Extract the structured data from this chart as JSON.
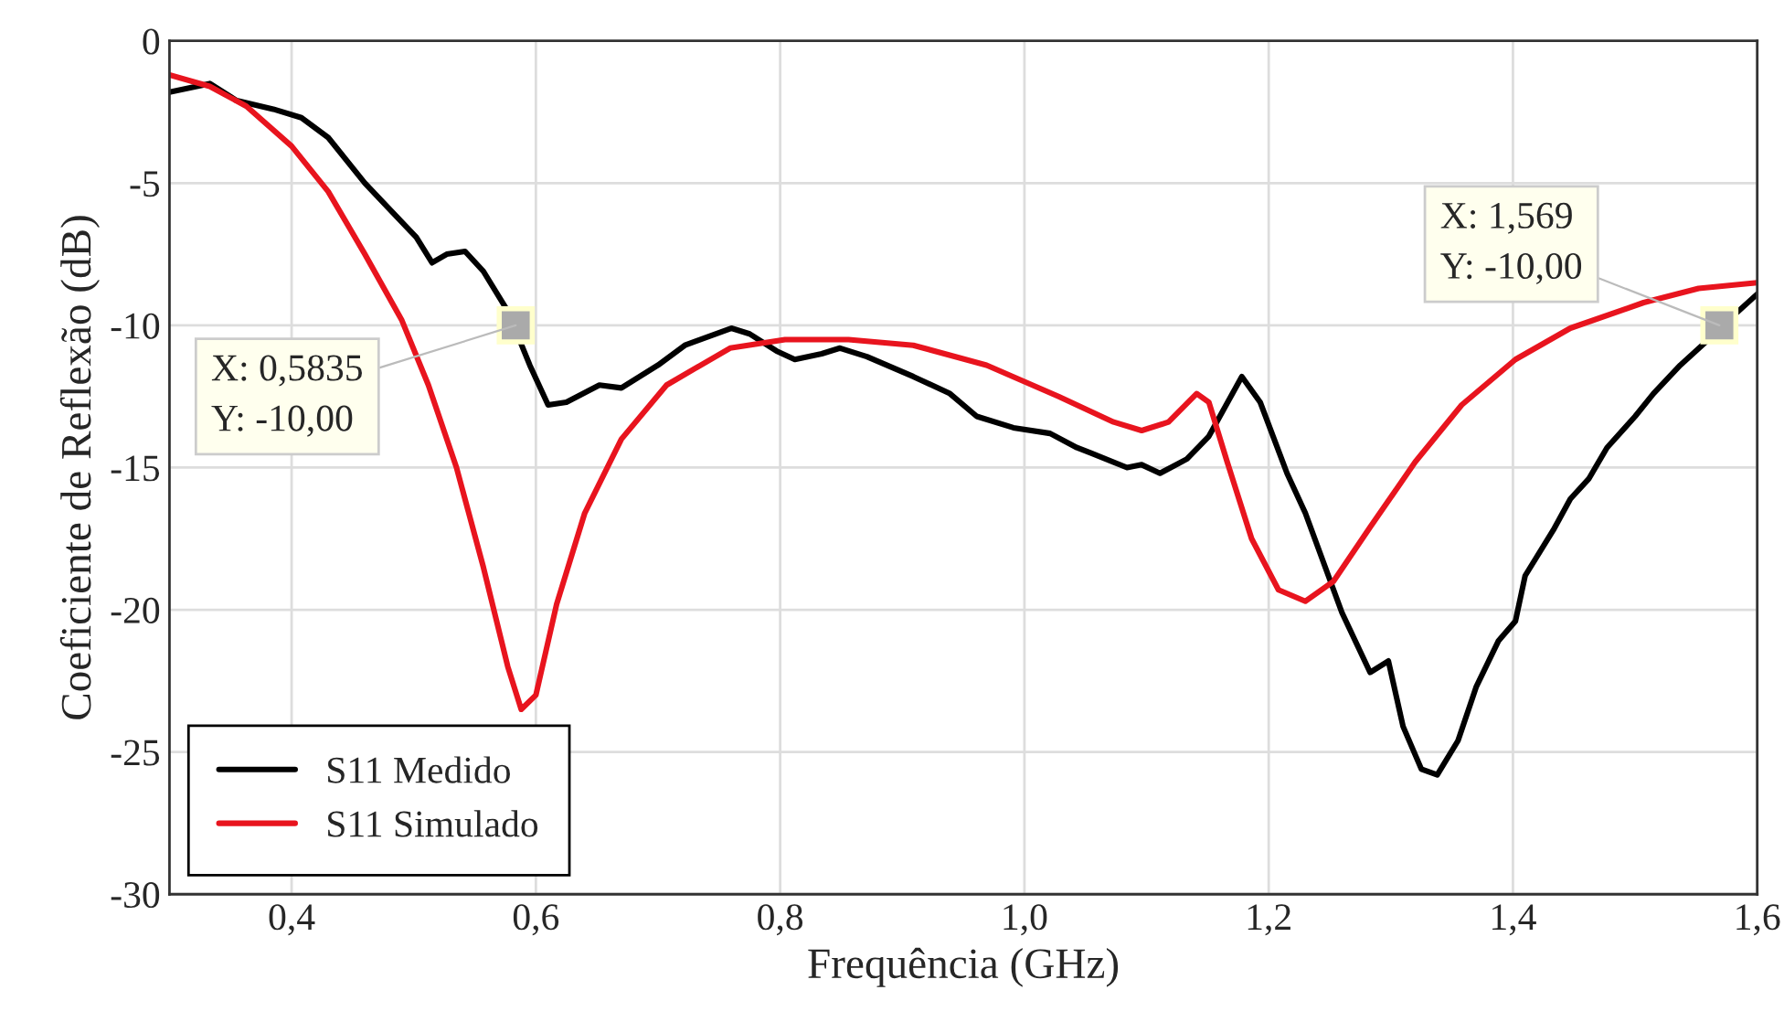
{
  "chart_data": {
    "type": "line",
    "xlabel": "Frequência (GHz)",
    "ylabel": "Coeficiente de Reflexão (dB)",
    "xlim": [
      0.3,
      1.6
    ],
    "ylim": [
      -30,
      0
    ],
    "xticks": [
      {
        "value": 0.4,
        "label": "0,4"
      },
      {
        "value": 0.6,
        "label": "0,6"
      },
      {
        "value": 0.8,
        "label": "0,8"
      },
      {
        "value": 1.0,
        "label": "1,0"
      },
      {
        "value": 1.2,
        "label": "1,2"
      },
      {
        "value": 1.4,
        "label": "1,4"
      },
      {
        "value": 1.6,
        "label": "1,6"
      }
    ],
    "yticks": [
      -30,
      -25,
      -20,
      -15,
      -10,
      -5,
      0
    ],
    "grid": true,
    "legend": "bottom left",
    "line_style": "solid",
    "marker": "none",
    "series": [
      {
        "name": "S11 Medido",
        "color": "#000000",
        "x": [
          0.3,
          0.333,
          0.355,
          0.385,
          0.408,
          0.43,
          0.46,
          0.482,
          0.502,
          0.515,
          0.527,
          0.542,
          0.557,
          0.577,
          0.595,
          0.61,
          0.625,
          0.652,
          0.67,
          0.7,
          0.722,
          0.76,
          0.775,
          0.797,
          0.812,
          0.834,
          0.849,
          0.871,
          0.909,
          0.939,
          0.961,
          0.991,
          1.021,
          1.043,
          1.055,
          1.084,
          1.096,
          1.111,
          1.133,
          1.151,
          1.16,
          1.178,
          1.193,
          1.215,
          1.23,
          1.26,
          1.283,
          1.298,
          1.31,
          1.325,
          1.338,
          1.355,
          1.37,
          1.388,
          1.402,
          1.41,
          1.433,
          1.447,
          1.462,
          1.477,
          1.5,
          1.515,
          1.537,
          1.56,
          1.582,
          1.6
        ],
        "values": [
          -1.8,
          -1.5,
          -2.1,
          -2.4,
          -2.7,
          -3.4,
          -5.0,
          -6.0,
          -6.9,
          -7.8,
          -7.5,
          -7.4,
          -8.1,
          -9.5,
          -11.4,
          -12.8,
          -12.7,
          -12.1,
          -12.2,
          -11.4,
          -10.7,
          -10.1,
          -10.3,
          -10.9,
          -11.2,
          -11.0,
          -10.8,
          -11.1,
          -11.8,
          -12.4,
          -13.2,
          -13.6,
          -13.8,
          -14.3,
          -14.5,
          -15.0,
          -14.9,
          -15.2,
          -14.7,
          -13.9,
          -13.2,
          -11.8,
          -12.7,
          -15.2,
          -16.6,
          -20.1,
          -22.2,
          -21.8,
          -24.1,
          -25.6,
          -25.8,
          -24.6,
          -22.7,
          -21.1,
          -20.4,
          -18.8,
          -17.2,
          -16.1,
          -15.4,
          -14.3,
          -13.2,
          -12.4,
          -11.4,
          -10.5,
          -9.6,
          -8.9
        ]
      },
      {
        "name": "S11 Simulado",
        "color": "#e8141e",
        "x": [
          0.3,
          0.333,
          0.363,
          0.4,
          0.43,
          0.46,
          0.49,
          0.512,
          0.535,
          0.557,
          0.577,
          0.588,
          0.6,
          0.617,
          0.64,
          0.67,
          0.707,
          0.759,
          0.804,
          0.856,
          0.909,
          0.969,
          1.028,
          1.073,
          1.096,
          1.118,
          1.141,
          1.151,
          1.166,
          1.186,
          1.208,
          1.23,
          1.253,
          1.283,
          1.32,
          1.358,
          1.402,
          1.447,
          1.507,
          1.552,
          1.6
        ],
        "values": [
          -1.2,
          -1.6,
          -2.3,
          -3.7,
          -5.3,
          -7.5,
          -9.8,
          -12.1,
          -15.0,
          -18.5,
          -22.0,
          -23.5,
          -23.0,
          -19.8,
          -16.6,
          -14.0,
          -12.1,
          -10.8,
          -10.5,
          -10.5,
          -10.7,
          -11.4,
          -12.5,
          -13.4,
          -13.7,
          -13.4,
          -12.4,
          -12.7,
          -14.8,
          -17.5,
          -19.3,
          -19.7,
          -19.0,
          -17.1,
          -14.8,
          -12.8,
          -11.2,
          -10.1,
          -9.2,
          -8.7,
          -8.5
        ]
      }
    ],
    "annotations": [
      {
        "text": "X: 0,5835\nY: -10,00",
        "x": 0.5835,
        "y": -10
      },
      {
        "text": "X: 1,569\nY: -10,00",
        "x": 1.569,
        "y": -10
      }
    ]
  }
}
